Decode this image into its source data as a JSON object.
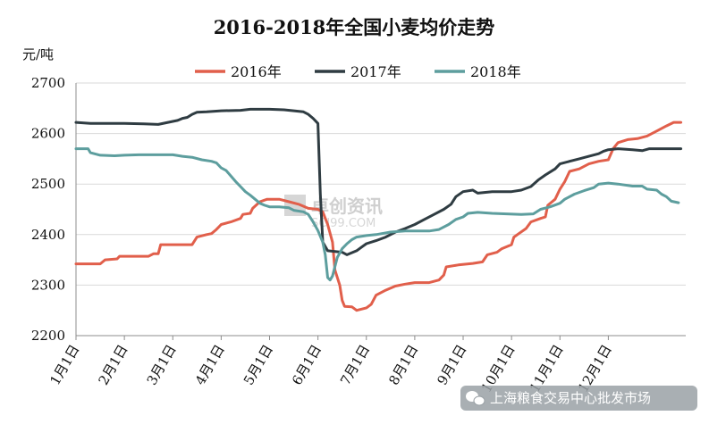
{
  "chart_data": {
    "type": "line",
    "title": "2016-2018年全国小麦均价走势",
    "ylabel": "元/吨",
    "xlabel": "",
    "ylim": [
      2200,
      2700
    ],
    "yticks": [
      2200,
      2300,
      2400,
      2500,
      2600,
      2700
    ],
    "xlim": [
      0,
      12.6
    ],
    "xticks": [
      {
        "label": "1月1日",
        "value": 0
      },
      {
        "label": "2月1日",
        "value": 1
      },
      {
        "label": "3月1日",
        "value": 2
      },
      {
        "label": "4月1日",
        "value": 3
      },
      {
        "label": "5月1日",
        "value": 4
      },
      {
        "label": "6月1日",
        "value": 5
      },
      {
        "label": "7月1日",
        "value": 6
      },
      {
        "label": "8月1日",
        "value": 7
      },
      {
        "label": "9月1日",
        "value": 8
      },
      {
        "label": "10月1日",
        "value": 9
      },
      {
        "label": "11月1日",
        "value": 10
      },
      {
        "label": "12月1日",
        "value": 11
      }
    ],
    "grid": "horizontal",
    "legend": "top",
    "series": [
      {
        "name": "2016年",
        "color": "#e15f4b",
        "points": [
          [
            0,
            2342
          ],
          [
            0.5,
            2342
          ],
          [
            0.6,
            2350
          ],
          [
            0.85,
            2352
          ],
          [
            0.9,
            2357
          ],
          [
            1.5,
            2357
          ],
          [
            1.6,
            2362
          ],
          [
            1.7,
            2362
          ],
          [
            1.75,
            2380
          ],
          [
            2.4,
            2380
          ],
          [
            2.5,
            2395
          ],
          [
            2.7,
            2400
          ],
          [
            2.8,
            2402
          ],
          [
            2.9,
            2410
          ],
          [
            3.0,
            2420
          ],
          [
            3.2,
            2425
          ],
          [
            3.4,
            2432
          ],
          [
            3.45,
            2440
          ],
          [
            3.6,
            2442
          ],
          [
            3.65,
            2452
          ],
          [
            3.8,
            2465
          ],
          [
            3.95,
            2470
          ],
          [
            4.2,
            2470
          ],
          [
            4.4,
            2465
          ],
          [
            4.6,
            2460
          ],
          [
            4.8,
            2452
          ],
          [
            5.0,
            2450
          ],
          [
            5.1,
            2445
          ],
          [
            5.2,
            2420
          ],
          [
            5.3,
            2385
          ],
          [
            5.35,
            2330
          ],
          [
            5.45,
            2300
          ],
          [
            5.5,
            2270
          ],
          [
            5.55,
            2258
          ],
          [
            5.7,
            2257
          ],
          [
            5.8,
            2250
          ],
          [
            6.0,
            2255
          ],
          [
            6.1,
            2262
          ],
          [
            6.2,
            2280
          ],
          [
            6.4,
            2290
          ],
          [
            6.6,
            2298
          ],
          [
            6.8,
            2302
          ],
          [
            7.0,
            2305
          ],
          [
            7.3,
            2305
          ],
          [
            7.5,
            2310
          ],
          [
            7.6,
            2320
          ],
          [
            7.65,
            2336
          ],
          [
            7.9,
            2340
          ],
          [
            8.2,
            2343
          ],
          [
            8.4,
            2346
          ],
          [
            8.5,
            2360
          ],
          [
            8.7,
            2365
          ],
          [
            8.8,
            2372
          ],
          [
            9.0,
            2380
          ],
          [
            9.05,
            2395
          ],
          [
            9.15,
            2402
          ],
          [
            9.3,
            2412
          ],
          [
            9.4,
            2425
          ],
          [
            9.6,
            2432
          ],
          [
            9.7,
            2435
          ],
          [
            9.75,
            2458
          ],
          [
            9.9,
            2470
          ],
          [
            10.0,
            2490
          ],
          [
            10.1,
            2505
          ],
          [
            10.2,
            2525
          ],
          [
            10.4,
            2530
          ],
          [
            10.6,
            2540
          ],
          [
            10.8,
            2545
          ],
          [
            11.0,
            2548
          ],
          [
            11.1,
            2570
          ],
          [
            11.2,
            2582
          ],
          [
            11.4,
            2588
          ],
          [
            11.6,
            2590
          ],
          [
            11.8,
            2595
          ],
          [
            12.0,
            2605
          ],
          [
            12.2,
            2615
          ],
          [
            12.35,
            2622
          ],
          [
            12.5,
            2622
          ]
        ]
      },
      {
        "name": "2017年",
        "color": "#2f3c42",
        "points": [
          [
            0,
            2622
          ],
          [
            0.3,
            2620
          ],
          [
            0.6,
            2620
          ],
          [
            1.0,
            2620
          ],
          [
            1.4,
            2619
          ],
          [
            1.7,
            2618
          ],
          [
            1.9,
            2622
          ],
          [
            2.1,
            2626
          ],
          [
            2.2,
            2630
          ],
          [
            2.3,
            2632
          ],
          [
            2.4,
            2638
          ],
          [
            2.5,
            2642
          ],
          [
            2.7,
            2643
          ],
          [
            3.0,
            2645
          ],
          [
            3.4,
            2646
          ],
          [
            3.6,
            2648
          ],
          [
            4.0,
            2648
          ],
          [
            4.3,
            2647
          ],
          [
            4.5,
            2645
          ],
          [
            4.7,
            2643
          ],
          [
            4.8,
            2638
          ],
          [
            4.9,
            2630
          ],
          [
            5.0,
            2620
          ],
          [
            5.05,
            2480
          ],
          [
            5.1,
            2385
          ],
          [
            5.2,
            2368
          ],
          [
            5.5,
            2365
          ],
          [
            5.6,
            2360
          ],
          [
            5.8,
            2368
          ],
          [
            5.9,
            2375
          ],
          [
            6.0,
            2382
          ],
          [
            6.2,
            2388
          ],
          [
            6.4,
            2395
          ],
          [
            6.6,
            2405
          ],
          [
            6.8,
            2412
          ],
          [
            7.0,
            2420
          ],
          [
            7.2,
            2430
          ],
          [
            7.4,
            2440
          ],
          [
            7.6,
            2450
          ],
          [
            7.75,
            2460
          ],
          [
            7.85,
            2475
          ],
          [
            8.0,
            2485
          ],
          [
            8.2,
            2488
          ],
          [
            8.3,
            2482
          ],
          [
            8.6,
            2485
          ],
          [
            9.0,
            2485
          ],
          [
            9.2,
            2488
          ],
          [
            9.4,
            2495
          ],
          [
            9.55,
            2508
          ],
          [
            9.7,
            2518
          ],
          [
            9.9,
            2530
          ],
          [
            10.0,
            2540
          ],
          [
            10.2,
            2545
          ],
          [
            10.4,
            2550
          ],
          [
            10.6,
            2555
          ],
          [
            10.8,
            2560
          ],
          [
            10.9,
            2565
          ],
          [
            11.0,
            2568
          ],
          [
            11.2,
            2570
          ],
          [
            11.5,
            2568
          ],
          [
            11.7,
            2566
          ],
          [
            11.85,
            2570
          ],
          [
            12.0,
            2570
          ],
          [
            12.5,
            2570
          ]
        ]
      },
      {
        "name": "2018年",
        "color": "#5d9e9e",
        "points": [
          [
            0,
            2570
          ],
          [
            0.25,
            2570
          ],
          [
            0.3,
            2562
          ],
          [
            0.5,
            2557
          ],
          [
            0.8,
            2556
          ],
          [
            1.0,
            2557
          ],
          [
            1.3,
            2558
          ],
          [
            1.8,
            2558
          ],
          [
            2.0,
            2558
          ],
          [
            2.2,
            2555
          ],
          [
            2.4,
            2553
          ],
          [
            2.6,
            2548
          ],
          [
            2.8,
            2545
          ],
          [
            2.9,
            2542
          ],
          [
            3.0,
            2532
          ],
          [
            3.1,
            2527
          ],
          [
            3.2,
            2516
          ],
          [
            3.3,
            2505
          ],
          [
            3.4,
            2495
          ],
          [
            3.5,
            2485
          ],
          [
            3.6,
            2478
          ],
          [
            3.7,
            2470
          ],
          [
            3.8,
            2462
          ],
          [
            3.9,
            2458
          ],
          [
            4.0,
            2455
          ],
          [
            4.2,
            2455
          ],
          [
            4.4,
            2453
          ],
          [
            4.5,
            2448
          ],
          [
            4.7,
            2445
          ],
          [
            4.8,
            2440
          ],
          [
            4.9,
            2425
          ],
          [
            5.0,
            2408
          ],
          [
            5.1,
            2385
          ],
          [
            5.15,
            2360
          ],
          [
            5.2,
            2315
          ],
          [
            5.25,
            2310
          ],
          [
            5.3,
            2318
          ],
          [
            5.4,
            2355
          ],
          [
            5.5,
            2372
          ],
          [
            5.6,
            2382
          ],
          [
            5.7,
            2390
          ],
          [
            5.8,
            2395
          ],
          [
            6.0,
            2398
          ],
          [
            6.2,
            2400
          ],
          [
            6.5,
            2405
          ],
          [
            6.8,
            2407
          ],
          [
            7.0,
            2407
          ],
          [
            7.3,
            2407
          ],
          [
            7.5,
            2410
          ],
          [
            7.7,
            2420
          ],
          [
            7.85,
            2430
          ],
          [
            8.0,
            2435
          ],
          [
            8.1,
            2442
          ],
          [
            8.3,
            2444
          ],
          [
            8.6,
            2442
          ],
          [
            8.9,
            2441
          ],
          [
            9.2,
            2440
          ],
          [
            9.45,
            2441
          ],
          [
            9.6,
            2450
          ],
          [
            9.8,
            2455
          ],
          [
            10.0,
            2462
          ],
          [
            10.1,
            2470
          ],
          [
            10.3,
            2480
          ],
          [
            10.5,
            2487
          ],
          [
            10.7,
            2493
          ],
          [
            10.8,
            2500
          ],
          [
            11.0,
            2502
          ],
          [
            11.2,
            2500
          ],
          [
            11.5,
            2496
          ],
          [
            11.7,
            2496
          ],
          [
            11.8,
            2490
          ],
          [
            12.0,
            2488
          ],
          [
            12.1,
            2480
          ],
          [
            12.2,
            2475
          ],
          [
            12.3,
            2466
          ],
          [
            12.45,
            2463
          ]
        ]
      }
    ]
  },
  "watermark": {
    "main": "卓创资讯",
    "sub": "SCI99.COM"
  },
  "footer": {
    "source": "上海粮食交易中心批发市场"
  },
  "colors": {
    "footer_bg": "#9aa1a6",
    "grid": "#d9d9d9"
  }
}
